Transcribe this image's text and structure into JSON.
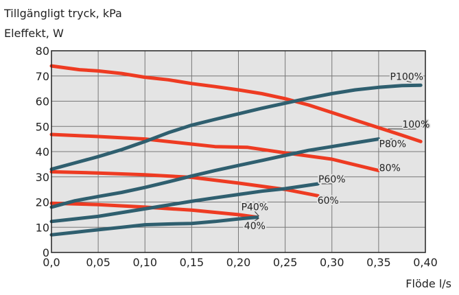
{
  "chart_data": {
    "type": "line",
    "ylabel_lines": [
      "Tillgängligt tryck, kPa",
      "Eleffekt, W"
    ],
    "xlabel": "Flöde l/s",
    "xlim": [
      0,
      0.4
    ],
    "ylim": [
      0,
      80
    ],
    "x_ticks": [
      0,
      0.05,
      0.1,
      0.15,
      0.2,
      0.25,
      0.3,
      0.35,
      0.4
    ],
    "x_tick_labels": [
      "0,0",
      "0,05",
      "0,10",
      "0,15",
      "0,20",
      "0,25",
      "0,30",
      "0,35",
      "0,40"
    ],
    "y_ticks": [
      0,
      10,
      20,
      30,
      40,
      50,
      60,
      70,
      80
    ],
    "y_tick_labels": [
      "0",
      "10",
      "20",
      "30",
      "40",
      "50",
      "60",
      "70",
      "80"
    ],
    "grid": true,
    "colors": {
      "pressure": "#ee3b22",
      "power": "#2f5f6f",
      "plot_bg": "#e4e4e4",
      "grid": "#777777"
    },
    "series": [
      {
        "name": "100%",
        "kind": "pressure",
        "points": [
          [
            0.0,
            74
          ],
          [
            0.03,
            72.5
          ],
          [
            0.05,
            72
          ],
          [
            0.075,
            71
          ],
          [
            0.1,
            69.5
          ],
          [
            0.125,
            68.5
          ],
          [
            0.15,
            67
          ],
          [
            0.175,
            65.8
          ],
          [
            0.2,
            64.5
          ],
          [
            0.225,
            63
          ],
          [
            0.25,
            61
          ],
          [
            0.275,
            58.5
          ],
          [
            0.3,
            55.5
          ],
          [
            0.325,
            52.5
          ],
          [
            0.35,
            49.5
          ],
          [
            0.375,
            46.5
          ],
          [
            0.395,
            44
          ]
        ]
      },
      {
        "name": "80%",
        "kind": "pressure",
        "points": [
          [
            0.0,
            46.8
          ],
          [
            0.05,
            46
          ],
          [
            0.1,
            45
          ],
          [
            0.15,
            43
          ],
          [
            0.175,
            42
          ],
          [
            0.21,
            41.7
          ],
          [
            0.25,
            39.5
          ],
          [
            0.3,
            37
          ],
          [
            0.35,
            32.5
          ]
        ]
      },
      {
        "name": "60%",
        "kind": "pressure",
        "points": [
          [
            0.0,
            32
          ],
          [
            0.05,
            31.5
          ],
          [
            0.1,
            30.8
          ],
          [
            0.15,
            29.8
          ],
          [
            0.2,
            27.5
          ],
          [
            0.25,
            25
          ],
          [
            0.285,
            22.5
          ]
        ]
      },
      {
        "name": "40%",
        "kind": "pressure",
        "points": [
          [
            0.0,
            19.5
          ],
          [
            0.05,
            19
          ],
          [
            0.1,
            18
          ],
          [
            0.15,
            16.8
          ],
          [
            0.2,
            15
          ],
          [
            0.22,
            14
          ]
        ]
      },
      {
        "name": "P100%",
        "kind": "power",
        "points": [
          [
            0.0,
            33
          ],
          [
            0.025,
            35.5
          ],
          [
            0.05,
            38
          ],
          [
            0.075,
            40.8
          ],
          [
            0.1,
            44
          ],
          [
            0.125,
            47.5
          ],
          [
            0.15,
            50.5
          ],
          [
            0.175,
            52.8
          ],
          [
            0.2,
            55
          ],
          [
            0.225,
            57.2
          ],
          [
            0.25,
            59.2
          ],
          [
            0.275,
            61.2
          ],
          [
            0.3,
            63
          ],
          [
            0.325,
            64.5
          ],
          [
            0.35,
            65.5
          ],
          [
            0.375,
            66.2
          ],
          [
            0.395,
            66.3
          ]
        ]
      },
      {
        "name": "P80%",
        "kind": "power",
        "points": [
          [
            0.0,
            18
          ],
          [
            0.025,
            20.5
          ],
          [
            0.05,
            22.2
          ],
          [
            0.075,
            23.8
          ],
          [
            0.1,
            25.8
          ],
          [
            0.125,
            28
          ],
          [
            0.15,
            30.3
          ],
          [
            0.175,
            32.5
          ],
          [
            0.2,
            34.5
          ],
          [
            0.225,
            36.5
          ],
          [
            0.25,
            38.5
          ],
          [
            0.275,
            40.5
          ],
          [
            0.3,
            42
          ],
          [
            0.325,
            43.5
          ],
          [
            0.35,
            45
          ]
        ]
      },
      {
        "name": "P60%",
        "kind": "power",
        "points": [
          [
            0.0,
            12.3
          ],
          [
            0.025,
            13.3
          ],
          [
            0.05,
            14.3
          ],
          [
            0.075,
            15.8
          ],
          [
            0.1,
            17.3
          ],
          [
            0.125,
            18.8
          ],
          [
            0.15,
            20.3
          ],
          [
            0.175,
            21.7
          ],
          [
            0.2,
            23
          ],
          [
            0.225,
            24.3
          ],
          [
            0.25,
            25.3
          ],
          [
            0.285,
            27.2
          ]
        ]
      },
      {
        "name": "P40%",
        "kind": "power",
        "points": [
          [
            0.0,
            7
          ],
          [
            0.025,
            8
          ],
          [
            0.05,
            9
          ],
          [
            0.075,
            10
          ],
          [
            0.1,
            11
          ],
          [
            0.125,
            11.3
          ],
          [
            0.15,
            11.5
          ],
          [
            0.175,
            12.3
          ],
          [
            0.2,
            13.3
          ],
          [
            0.22,
            14
          ]
        ]
      }
    ],
    "annotations": [
      {
        "text": "P100%",
        "x": 0.38,
        "y": 68.5,
        "leader_to": [
          0.385,
          67.5
        ]
      },
      {
        "text": "100%",
        "x": 0.39,
        "y": 49.5,
        "leader_to": [
          0.36,
          49
        ]
      },
      {
        "text": "P80%",
        "x": 0.365,
        "y": 41.8,
        "leader_to": [
          0.352,
          44.2
        ]
      },
      {
        "text": "80%",
        "x": 0.362,
        "y": 32.2,
        "leader_to": [
          0.352,
          33.2
        ]
      },
      {
        "text": "P60%",
        "x": 0.3,
        "y": 27.8,
        "leader_to": [
          0.289,
          27.2
        ]
      },
      {
        "text": "60%",
        "x": 0.296,
        "y": 19.3,
        "leader_to": [
          0.288,
          22
        ]
      },
      {
        "text": "P40%",
        "x": 0.2175,
        "y": 16.8,
        "leader_to": [
          0.222,
          14.4
        ]
      },
      {
        "text": "40%",
        "x": 0.2175,
        "y": 9.3,
        "leader_to": [
          0.222,
          13.6
        ]
      }
    ]
  }
}
